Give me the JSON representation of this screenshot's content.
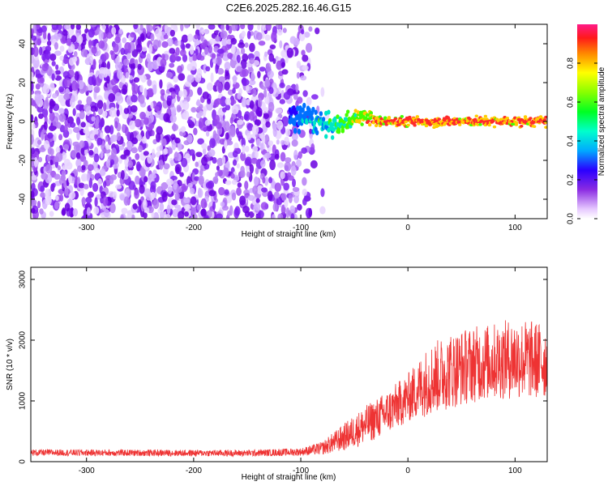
{
  "title": "C2E6.2025.282.16.46.G15",
  "chart_data": [
    {
      "type": "heatmap",
      "xlabel": "Height of straight line (km)",
      "ylabel": "Frequency (Hz)",
      "xlim": [
        -352,
        130
      ],
      "ylim": [
        -50,
        50
      ],
      "xticks": [
        -300,
        -200,
        -100,
        0,
        100
      ],
      "yticks": [
        -40,
        -20,
        0,
        20,
        40
      ],
      "colorbar": {
        "label": "Normalized spectral amplitude",
        "range": [
          0.0,
          1.0
        ],
        "ticks": [
          0.0,
          0.2,
          0.4,
          0.6,
          0.8
        ],
        "tick_labels": [
          "0.0",
          "0.2",
          "0.4",
          "0.6",
          "0.8"
        ]
      },
      "features": {
        "noise_region_x": [
          -352,
          -95
        ],
        "carrier_start_x": -110,
        "carrier_steady_x": -20,
        "carrier_frequency_hz": 0,
        "peak_amplitude": 0.95
      }
    },
    {
      "type": "line",
      "xlabel": "Height of straight line (km)",
      "ylabel": "SNR (10 * v/v)",
      "xlim": [
        -352,
        130
      ],
      "ylim": [
        0,
        3200
      ],
      "xticks": [
        -300,
        -200,
        -100,
        0,
        100
      ],
      "yticks": [
        0,
        1000,
        2000,
        3000
      ],
      "series_color": "#ee3333",
      "envelope": {
        "x": [
          -352,
          -150,
          -100,
          -80,
          -60,
          -40,
          -20,
          0,
          20,
          40,
          60,
          80,
          100,
          130
        ],
        "mean": [
          150,
          140,
          160,
          220,
          400,
          600,
          800,
          1050,
          1350,
          1500,
          1600,
          1650,
          1700,
          1650
        ],
        "spread": [
          60,
          60,
          70,
          120,
          250,
          350,
          400,
          450,
          650,
          700,
          700,
          700,
          750,
          700
        ]
      }
    }
  ]
}
